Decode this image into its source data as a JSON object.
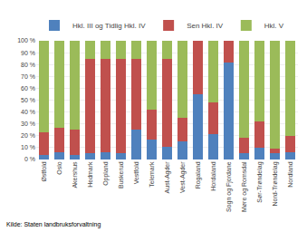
{
  "chart_data": {
    "type": "bar",
    "stacked": true,
    "categories": [
      "Østfold",
      "Oslo",
      "Akershus",
      "Hedmark",
      "Oppland",
      "Buskerud",
      "Vestfold",
      "Telemark",
      "Aust-Agder",
      "Vest-Agder",
      "Rogaland",
      "Hordaland",
      "Sogn og Fjordane",
      "Møre og Romsdal",
      "Sør-Trøndelag",
      "Nord-Trøndelag",
      "Nordland"
    ],
    "series": [
      {
        "name": "Hkl. III og Tidlig Hkl. IV",
        "color": "#4F81BD",
        "values": [
          4,
          6,
          4,
          5,
          6,
          5,
          25,
          17,
          11,
          15,
          55,
          21,
          82,
          5,
          10,
          5,
          6
        ]
      },
      {
        "name": "Sen Hkl. IV",
        "color": "#C0504D",
        "values": [
          19,
          21,
          21,
          80,
          79,
          80,
          60,
          25,
          74,
          20,
          45,
          27,
          18,
          13,
          22,
          4,
          14
        ]
      },
      {
        "name": "Hkl. V",
        "color": "#9BBB59",
        "values": [
          77,
          73,
          75,
          15,
          15,
          15,
          15,
          58,
          15,
          65,
          0,
          52,
          0,
          82,
          68,
          91,
          80
        ]
      }
    ],
    "ylim": [
      0,
      100
    ],
    "yticks": [
      {
        "value": 0,
        "label": "0 %"
      },
      {
        "value": 10,
        "label": "10 %"
      },
      {
        "value": 20,
        "label": "20 %"
      },
      {
        "value": 30,
        "label": "30 %"
      },
      {
        "value": 40,
        "label": "40 %"
      },
      {
        "value": 50,
        "label": "50 %"
      },
      {
        "value": 60,
        "label": "60 %"
      },
      {
        "value": 70,
        "label": "70 %"
      },
      {
        "value": 80,
        "label": "80 %"
      },
      {
        "value": 90,
        "label": "90 %"
      },
      {
        "value": 100,
        "label": "100 %"
      }
    ],
    "grid": true,
    "legend": "top",
    "annotations": [
      "Kilde: Staten landbruksforvaltning"
    ]
  }
}
